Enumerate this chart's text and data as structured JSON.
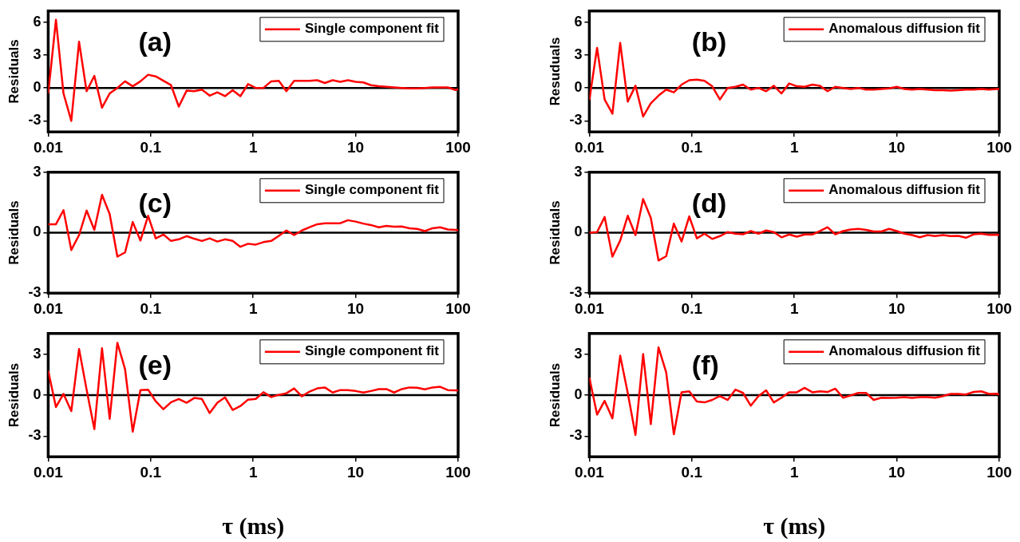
{
  "chart_data": [
    {
      "type": "line",
      "annotations": [
        "(a)"
      ],
      "ylabel": "Residuals",
      "log": "x",
      "xlim": [
        0.01,
        100
      ],
      "xticks": [
        0.01,
        0.1,
        1,
        10,
        100
      ],
      "ylim": [
        -4,
        7
      ],
      "yticks": [
        -3,
        0,
        3,
        6
      ],
      "legend": "top right",
      "ref_lines": [
        {
          "axis": "y",
          "value": 0,
          "color": "#000000"
        }
      ],
      "x": [
        0.01,
        0.0119,
        0.0141,
        0.0168,
        0.02,
        0.0237,
        0.0282,
        0.0335,
        0.0398,
        0.0473,
        0.0562,
        0.0668,
        0.0794,
        0.0944,
        0.112,
        0.133,
        0.158,
        0.188,
        0.224,
        0.266,
        0.316,
        0.376,
        0.447,
        0.531,
        0.631,
        0.75,
        0.891,
        1.06,
        1.26,
        1.5,
        1.78,
        2.11,
        2.51,
        2.99,
        3.55,
        4.22,
        5.01,
        5.96,
        7.08,
        8.41,
        10,
        11.9,
        14.1,
        16.8,
        20,
        23.7,
        28.2,
        33.5,
        39.8,
        47.3,
        56.2,
        66.8,
        79.4,
        94.4,
        100
      ],
      "series": [
        {
          "name": "Single component fit",
          "color": "#ff0000",
          "values": [
            -0.5,
            6.2,
            -0.5,
            -3.0,
            4.2,
            -0.3,
            1.1,
            -1.8,
            -0.5,
            0,
            0.6,
            0.15,
            0.6,
            1.2,
            1.05,
            0.65,
            0.25,
            -1.7,
            -0.25,
            -0.3,
            -0.15,
            -0.7,
            -0.4,
            -0.75,
            -0.2,
            -0.75,
            0.35,
            0,
            0,
            0.6,
            0.65,
            -0.3,
            0.65,
            0.65,
            0.65,
            0.7,
            0.45,
            0.7,
            0.55,
            0.7,
            0.55,
            0.5,
            0.25,
            0.15,
            0.1,
            0.05,
            0,
            -0.05,
            -0.05,
            0,
            0.05,
            0.05,
            0.05,
            -0.2,
            -0.1
          ]
        }
      ]
    },
    {
      "type": "line",
      "annotations": [
        "(b)"
      ],
      "ylabel": "Resuduals",
      "log": "x",
      "xlim": [
        0.01,
        100
      ],
      "xticks": [
        0.01,
        0.1,
        1,
        10,
        100
      ],
      "ylim": [
        -4,
        7
      ],
      "yticks": [
        -3,
        0,
        3,
        6
      ],
      "legend": "top right",
      "ref_lines": [
        {
          "axis": "y",
          "value": 0,
          "color": "#000000"
        }
      ],
      "x": [
        0.01,
        0.0119,
        0.0141,
        0.0168,
        0.02,
        0.0237,
        0.0282,
        0.0335,
        0.0398,
        0.0473,
        0.0562,
        0.0668,
        0.0794,
        0.0944,
        0.112,
        0.133,
        0.158,
        0.188,
        0.224,
        0.266,
        0.316,
        0.376,
        0.447,
        0.531,
        0.631,
        0.75,
        0.891,
        1.06,
        1.26,
        1.5,
        1.78,
        2.11,
        2.51,
        2.99,
        3.55,
        4.22,
        5.01,
        5.96,
        7.08,
        8.41,
        10,
        11.9,
        14.1,
        16.8,
        20,
        23.7,
        28.2,
        33.5,
        39.8,
        47.3,
        56.2,
        66.8,
        79.4,
        94.4,
        100
      ],
      "series": [
        {
          "name": "Anomalous diffusion fit",
          "color": "#ff0000",
          "values": [
            -1.1,
            3.65,
            -1.05,
            -2.35,
            4.1,
            -1.25,
            0.2,
            -2.6,
            -1.4,
            -0.7,
            -0.15,
            -0.4,
            0.3,
            0.7,
            0.75,
            0.65,
            0.15,
            -1.05,
            0,
            0.1,
            0.3,
            -0.15,
            0,
            -0.3,
            0.2,
            -0.5,
            0.4,
            0.15,
            0.1,
            0.3,
            0.2,
            -0.3,
            0.1,
            0,
            -0.1,
            0,
            -0.15,
            -0.15,
            -0.1,
            -0.05,
            0.1,
            -0.1,
            -0.15,
            -0.1,
            -0.15,
            -0.2,
            -0.2,
            -0.25,
            -0.2,
            -0.15,
            -0.15,
            -0.1,
            -0.15,
            -0.1,
            -0.1
          ]
        }
      ]
    },
    {
      "type": "line",
      "annotations": [
        "(c)"
      ],
      "ylabel": "Residuals",
      "log": "x",
      "xlim": [
        0.01,
        100
      ],
      "xticks": [
        0.01,
        0.1,
        1,
        10,
        100
      ],
      "ylim": [
        -3,
        3
      ],
      "yticks": [
        -3,
        0,
        3
      ],
      "legend": "top right",
      "ref_lines": [
        {
          "axis": "y",
          "value": 0,
          "color": "#000000"
        }
      ],
      "x": [
        0.01,
        0.0119,
        0.0141,
        0.0168,
        0.02,
        0.0237,
        0.0282,
        0.0335,
        0.0398,
        0.0473,
        0.0562,
        0.0668,
        0.0794,
        0.0944,
        0.112,
        0.133,
        0.158,
        0.188,
        0.224,
        0.266,
        0.316,
        0.376,
        0.447,
        0.531,
        0.631,
        0.75,
        0.891,
        1.06,
        1.26,
        1.5,
        1.78,
        2.11,
        2.51,
        2.99,
        3.55,
        4.22,
        5.01,
        5.96,
        7.08,
        8.41,
        10,
        11.9,
        14.1,
        16.8,
        20,
        23.7,
        28.2,
        33.5,
        39.8,
        47.3,
        56.2,
        66.8,
        79.4,
        94.4,
        100
      ],
      "series": [
        {
          "name": "Single component fit",
          "color": "#ff0000",
          "values": [
            0.42,
            0.42,
            1.12,
            -0.86,
            -0.12,
            1.1,
            0.14,
            1.88,
            0.92,
            -1.19,
            -0.98,
            0.53,
            -0.39,
            0.84,
            -0.28,
            -0.09,
            -0.41,
            -0.33,
            -0.17,
            -0.3,
            -0.41,
            -0.28,
            -0.44,
            -0.33,
            -0.41,
            -0.7,
            -0.55,
            -0.59,
            -0.47,
            -0.41,
            -0.16,
            0.11,
            -0.12,
            0.11,
            0.27,
            0.42,
            0.47,
            0.47,
            0.47,
            0.62,
            0.55,
            0.45,
            0.38,
            0.27,
            0.34,
            0.3,
            0.31,
            0.22,
            0.19,
            0.08,
            0.22,
            0.27,
            0.16,
            0.14,
            0.12
          ]
        }
      ]
    },
    {
      "type": "line",
      "annotations": [
        "(d)"
      ],
      "ylabel": "Residuals",
      "log": "x",
      "xlim": [
        0.01,
        100
      ],
      "xticks": [
        0.01,
        0.1,
        1,
        10,
        100
      ],
      "ylim": [
        -3,
        3
      ],
      "yticks": [
        -3,
        0,
        3
      ],
      "legend": "top right",
      "ref_lines": [
        {
          "axis": "y",
          "value": 0,
          "color": "#000000"
        }
      ],
      "x": [
        0.01,
        0.0119,
        0.0141,
        0.0168,
        0.02,
        0.0237,
        0.0282,
        0.0335,
        0.0398,
        0.0473,
        0.0562,
        0.0668,
        0.0794,
        0.0944,
        0.112,
        0.133,
        0.158,
        0.188,
        0.224,
        0.266,
        0.316,
        0.376,
        0.447,
        0.531,
        0.631,
        0.75,
        0.891,
        1.06,
        1.26,
        1.5,
        1.78,
        2.11,
        2.51,
        2.99,
        3.55,
        4.22,
        5.01,
        5.96,
        7.08,
        8.41,
        10,
        11.9,
        14.1,
        16.8,
        20,
        23.7,
        28.2,
        33.5,
        39.8,
        47.3,
        56.2,
        66.8,
        79.4,
        94.4,
        100
      ],
      "series": [
        {
          "name": "Anomalous diffusion fit",
          "color": "#ff0000",
          "values": [
            0,
            0.03,
            0.78,
            -1.19,
            -0.39,
            0.84,
            -0.12,
            1.67,
            0.73,
            -1.38,
            -1.17,
            0.45,
            -0.44,
            0.81,
            -0.28,
            -0.05,
            -0.31,
            -0.17,
            0.03,
            -0.05,
            -0.08,
            0.08,
            -0.05,
            0.11,
            0.03,
            -0.23,
            -0.09,
            -0.2,
            -0.09,
            -0.09,
            0.08,
            0.27,
            -0.08,
            0.08,
            0.16,
            0.19,
            0.14,
            0.06,
            0.06,
            0.19,
            0.08,
            -0.05,
            -0.12,
            -0.23,
            -0.12,
            -0.17,
            -0.12,
            -0.17,
            -0.16,
            -0.25,
            -0.08,
            -0.05,
            -0.11,
            -0.1,
            -0.12
          ]
        }
      ]
    },
    {
      "type": "line",
      "annotations": [
        "(e)"
      ],
      "ylabel": "Residuals",
      "xlabel": "τ (ms)",
      "log": "x",
      "xlim": [
        0.01,
        100
      ],
      "xticks": [
        0.01,
        0.1,
        1,
        10,
        100
      ],
      "ylim": [
        -4.5,
        4.5
      ],
      "yticks": [
        -3,
        0,
        3
      ],
      "legend": "top right",
      "ref_lines": [
        {
          "axis": "y",
          "value": 0,
          "color": "#000000"
        }
      ],
      "x": [
        0.01,
        0.0119,
        0.0141,
        0.0168,
        0.02,
        0.0237,
        0.0282,
        0.0335,
        0.0398,
        0.0473,
        0.0562,
        0.0668,
        0.0794,
        0.0944,
        0.112,
        0.133,
        0.158,
        0.188,
        0.224,
        0.266,
        0.316,
        0.376,
        0.447,
        0.531,
        0.631,
        0.75,
        0.891,
        1.06,
        1.26,
        1.5,
        1.78,
        2.11,
        2.51,
        2.99,
        3.55,
        4.22,
        5.01,
        5.96,
        7.08,
        8.41,
        10,
        11.9,
        14.1,
        16.8,
        20,
        23.7,
        28.2,
        33.5,
        39.8,
        47.3,
        56.2,
        66.8,
        79.4,
        94.4,
        100
      ],
      "series": [
        {
          "name": "Single component fit",
          "color": "#ff0000",
          "values": [
            1.78,
            -0.87,
            0.09,
            -1.17,
            3.37,
            0.4,
            -2.48,
            3.42,
            -1.73,
            3.82,
            1.9,
            -2.67,
            0.37,
            0.4,
            -0.45,
            -1.03,
            -0.52,
            -0.28,
            -0.56,
            -0.21,
            -0.28,
            -1.31,
            -0.56,
            -0.16,
            -1.08,
            -0.8,
            -0.33,
            -0.28,
            0.21,
            -0.14,
            0.02,
            0.14,
            0.49,
            -0.09,
            0.26,
            0.49,
            0.56,
            0.19,
            0.37,
            0.37,
            0.3,
            0.19,
            0.3,
            0.44,
            0.44,
            0.19,
            0.44,
            0.56,
            0.54,
            0.42,
            0.56,
            0.61,
            0.37,
            0.35,
            0.33
          ]
        }
      ]
    },
    {
      "type": "line",
      "annotations": [
        "(f)"
      ],
      "ylabel": "Residuals",
      "xlabel": "τ (ms)",
      "log": "x",
      "xlim": [
        0.01,
        100
      ],
      "xticks": [
        0.01,
        0.1,
        1,
        10,
        100
      ],
      "ylim": [
        -4.5,
        4.5
      ],
      "yticks": [
        -3,
        0,
        3
      ],
      "legend": "top right",
      "ref_lines": [
        {
          "axis": "y",
          "value": 0,
          "color": "#000000"
        }
      ],
      "x": [
        0.01,
        0.0119,
        0.0141,
        0.0168,
        0.02,
        0.0237,
        0.0282,
        0.0335,
        0.0398,
        0.0473,
        0.0562,
        0.0668,
        0.0794,
        0.0944,
        0.112,
        0.133,
        0.158,
        0.188,
        0.224,
        0.266,
        0.316,
        0.376,
        0.447,
        0.531,
        0.631,
        0.75,
        0.891,
        1.06,
        1.26,
        1.5,
        1.78,
        2.11,
        2.51,
        2.99,
        3.55,
        4.22,
        5.01,
        5.96,
        7.08,
        8.41,
        10,
        11.9,
        14.1,
        16.8,
        20,
        23.7,
        28.2,
        33.5,
        39.8,
        47.3,
        56.2,
        66.8,
        79.4,
        94.4,
        100
      ],
      "series": [
        {
          "name": "Anomalous diffusion fit",
          "color": "#ff0000",
          "values": [
            1.28,
            -1.42,
            -0.42,
            -1.7,
            2.88,
            0.16,
            -2.91,
            3.0,
            -2.12,
            3.49,
            1.67,
            -2.86,
            0.21,
            0.28,
            -0.47,
            -0.53,
            -0.35,
            -0.07,
            -0.35,
            0.4,
            0.16,
            -0.77,
            -0.07,
            0.35,
            -0.53,
            -0.19,
            0.21,
            0.21,
            0.53,
            0.21,
            0.28,
            0.23,
            0.47,
            -0.19,
            -0.02,
            0.16,
            0.16,
            -0.35,
            -0.19,
            -0.21,
            -0.19,
            -0.14,
            -0.21,
            -0.14,
            -0.14,
            -0.19,
            -0.07,
            0.09,
            0.09,
            0.05,
            0.23,
            0.28,
            0.09,
            0.1,
            0.05
          ]
        }
      ]
    }
  ]
}
